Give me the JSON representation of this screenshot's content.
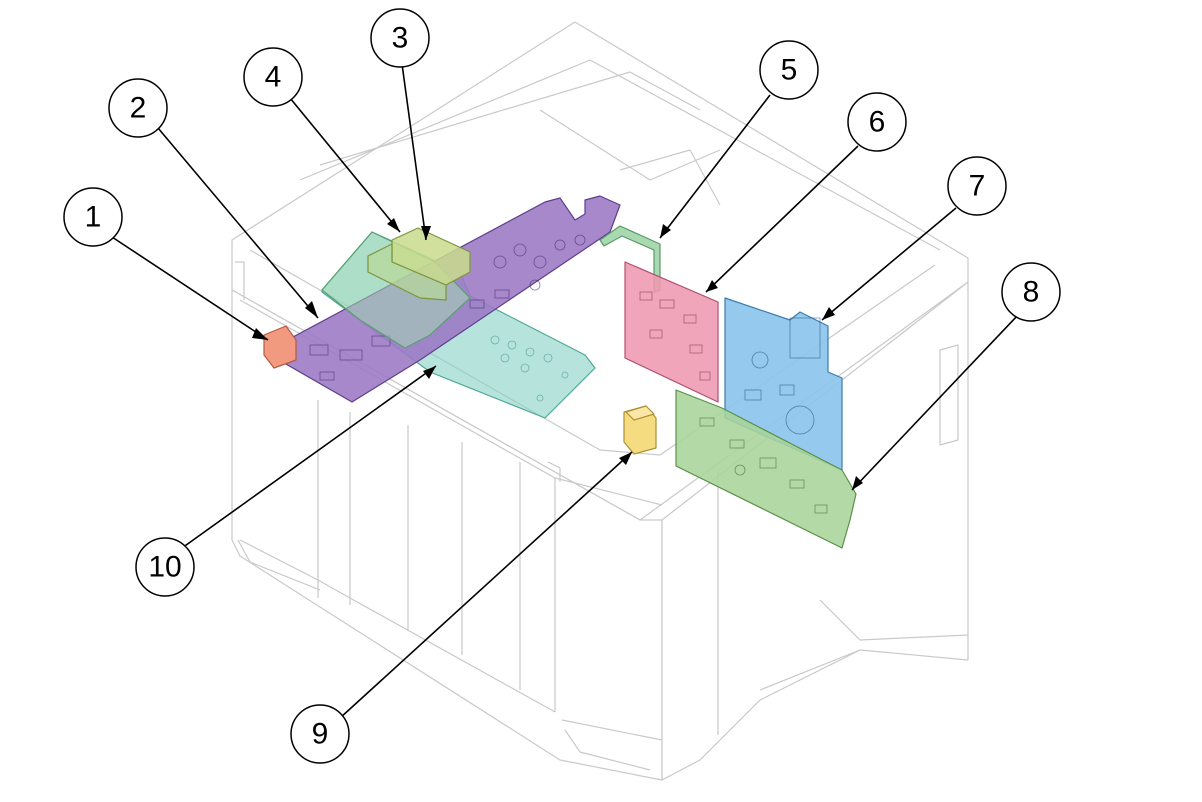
{
  "colors": {
    "part_1": "#f29a80",
    "part_2": "#9b77c4",
    "part_3": "#c9dc8c",
    "part_4": "#a6d9b4",
    "part_5": "#a8d9b0",
    "part_6": "#ee98b0",
    "part_7": "#8cc4ec",
    "part_8": "#a8d49a",
    "part_9": "#f5dc80",
    "part_10": "#86d2c6",
    "machine_outline": "#c9c9c9"
  },
  "callouts": [
    {
      "number": "1"
    },
    {
      "number": "2"
    },
    {
      "number": "3"
    },
    {
      "number": "4"
    },
    {
      "number": "5"
    },
    {
      "number": "6"
    },
    {
      "number": "7"
    },
    {
      "number": "8"
    },
    {
      "number": "9"
    },
    {
      "number": "10"
    }
  ]
}
